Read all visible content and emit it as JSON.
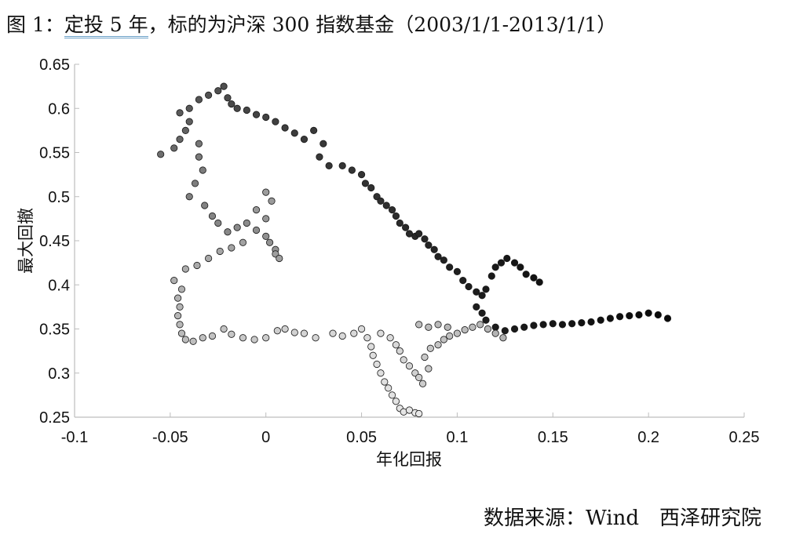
{
  "title": {
    "prefix": "图 1：",
    "highlight": "定投 5 年",
    "rest": "，标的为沪深 300 指数基金（2003/1/1-2013/1/1）"
  },
  "source": "数据来源：Wind　西泽研究院",
  "chart_data": {
    "type": "scatter",
    "xlabel": "年化回报",
    "ylabel": "最大回撤",
    "xlim": [
      -0.1,
      0.25
    ],
    "ylim": [
      0.25,
      0.65
    ],
    "xticks": [
      "-0.1",
      "-0.05",
      "0",
      "0.05",
      "0.1",
      "0.15",
      "0.2",
      "0.25"
    ],
    "yticks": [
      "0.25",
      "0.3",
      "0.35",
      "0.4",
      "0.45",
      "0.5",
      "0.55",
      "0.6",
      "0.65"
    ],
    "grid": false,
    "legend": "none",
    "colormap": "grayscale by start date (light to dark)",
    "points": [
      [
        -0.055,
        0.548,
        "#6e6e6e"
      ],
      [
        -0.048,
        0.555,
        "#6a6a6a"
      ],
      [
        -0.045,
        0.565,
        "#666666"
      ],
      [
        -0.042,
        0.575,
        "#626262"
      ],
      [
        -0.04,
        0.585,
        "#5e5e5e"
      ],
      [
        -0.045,
        0.595,
        "#5a5a5a"
      ],
      [
        -0.04,
        0.6,
        "#585858"
      ],
      [
        -0.035,
        0.61,
        "#555555"
      ],
      [
        -0.03,
        0.615,
        "#525252"
      ],
      [
        -0.025,
        0.62,
        "#505050"
      ],
      [
        -0.022,
        0.625,
        "#4e4e4e"
      ],
      [
        -0.02,
        0.612,
        "#4c4c4c"
      ],
      [
        -0.018,
        0.605,
        "#4a4a4a"
      ],
      [
        -0.015,
        0.6,
        "#484848"
      ],
      [
        -0.01,
        0.598,
        "#464646"
      ],
      [
        -0.005,
        0.593,
        "#444444"
      ],
      [
        0.0,
        0.59,
        "#424242"
      ],
      [
        0.005,
        0.585,
        "#404040"
      ],
      [
        0.01,
        0.578,
        "#3e3e3e"
      ],
      [
        0.015,
        0.572,
        "#3c3c3c"
      ],
      [
        0.02,
        0.565,
        "#3a3a3a"
      ],
      [
        0.025,
        0.575,
        "#393939"
      ],
      [
        0.03,
        0.56,
        "#383838"
      ],
      [
        0.028,
        0.545,
        "#373737"
      ],
      [
        0.033,
        0.535,
        "#363636"
      ],
      [
        0.04,
        0.535,
        "#353535"
      ],
      [
        0.045,
        0.53,
        "#343434"
      ],
      [
        0.05,
        0.525,
        "#333333"
      ],
      [
        0.052,
        0.515,
        "#323232"
      ],
      [
        0.055,
        0.51,
        "#313131"
      ],
      [
        0.058,
        0.5,
        "#303030"
      ],
      [
        0.06,
        0.495,
        "#2f2f2f"
      ],
      [
        0.063,
        0.49,
        "#2e2e2e"
      ],
      [
        0.066,
        0.485,
        "#2d2d2d"
      ],
      [
        0.068,
        0.478,
        "#2c2c2c"
      ],
      [
        0.07,
        0.47,
        "#2b2b2b"
      ],
      [
        0.073,
        0.465,
        "#2a2a2a"
      ],
      [
        0.075,
        0.458,
        "#292929"
      ],
      [
        0.078,
        0.455,
        "#282828"
      ],
      [
        0.08,
        0.458,
        "#272727"
      ],
      [
        0.083,
        0.452,
        "#262626"
      ],
      [
        0.085,
        0.445,
        "#252525"
      ],
      [
        0.088,
        0.44,
        "#242424"
      ],
      [
        0.09,
        0.432,
        "#232323"
      ],
      [
        0.093,
        0.428,
        "#222222"
      ],
      [
        0.096,
        0.42,
        "#212121"
      ],
      [
        0.1,
        0.415,
        "#202020"
      ],
      [
        0.103,
        0.405,
        "#1f1f1f"
      ],
      [
        0.106,
        0.398,
        "#1e1e1e"
      ],
      [
        0.11,
        0.392,
        "#1d1d1d"
      ],
      [
        0.113,
        0.388,
        "#1c1c1c"
      ],
      [
        0.115,
        0.395,
        "#1b1b1b"
      ],
      [
        0.118,
        0.41,
        "#1a1a1a"
      ],
      [
        0.12,
        0.42,
        "#191919"
      ],
      [
        0.123,
        0.425,
        "#181818"
      ],
      [
        0.126,
        0.43,
        "#171717"
      ],
      [
        0.13,
        0.425,
        "#161616"
      ],
      [
        0.133,
        0.42,
        "#151515"
      ],
      [
        0.136,
        0.412,
        "#141414"
      ],
      [
        0.14,
        0.408,
        "#131313"
      ],
      [
        0.143,
        0.403,
        "#121212"
      ],
      [
        0.11,
        0.375,
        "#1f1f1f"
      ],
      [
        0.113,
        0.368,
        "#1e1e1e"
      ],
      [
        0.115,
        0.36,
        "#1d1d1d"
      ],
      [
        0.12,
        0.352,
        "#1c1c1c"
      ],
      [
        0.125,
        0.348,
        "#1b1b1b"
      ],
      [
        0.13,
        0.35,
        "#1a1a1a"
      ],
      [
        0.135,
        0.352,
        "#191919"
      ],
      [
        0.14,
        0.354,
        "#181818"
      ],
      [
        0.145,
        0.355,
        "#171717"
      ],
      [
        0.15,
        0.356,
        "#161616"
      ],
      [
        0.155,
        0.355,
        "#151515"
      ],
      [
        0.16,
        0.356,
        "#141414"
      ],
      [
        0.165,
        0.357,
        "#131313"
      ],
      [
        0.17,
        0.358,
        "#121212"
      ],
      [
        0.175,
        0.36,
        "#111111"
      ],
      [
        0.18,
        0.362,
        "#101010"
      ],
      [
        0.185,
        0.364,
        "#0f0f0f"
      ],
      [
        0.19,
        0.365,
        "#0e0e0e"
      ],
      [
        0.195,
        0.366,
        "#0d0d0d"
      ],
      [
        0.2,
        0.368,
        "#0c0c0c"
      ],
      [
        0.205,
        0.366,
        "#0b0b0b"
      ],
      [
        0.21,
        0.362,
        "#0a0a0a"
      ],
      [
        -0.035,
        0.56,
        "#777777"
      ],
      [
        -0.035,
        0.545,
        "#7a7a7a"
      ],
      [
        -0.033,
        0.53,
        "#7c7c7c"
      ],
      [
        -0.037,
        0.515,
        "#7e7e7e"
      ],
      [
        -0.04,
        0.5,
        "#808080"
      ],
      [
        -0.032,
        0.49,
        "#828282"
      ],
      [
        -0.028,
        0.478,
        "#848484"
      ],
      [
        -0.025,
        0.47,
        "#868686"
      ],
      [
        -0.02,
        0.46,
        "#888888"
      ],
      [
        -0.015,
        0.465,
        "#8a8a8a"
      ],
      [
        -0.01,
        0.47,
        "#8c8c8c"
      ],
      [
        -0.005,
        0.462,
        "#8e8e8e"
      ],
      [
        0.0,
        0.455,
        "#909090"
      ],
      [
        0.002,
        0.448,
        "#929292"
      ],
      [
        0.005,
        0.44,
        "#949494"
      ],
      [
        0.0,
        0.475,
        "#969696"
      ],
      [
        -0.005,
        0.485,
        "#989898"
      ],
      [
        0.003,
        0.495,
        "#9a9a9a"
      ],
      [
        0.0,
        0.505,
        "#9c9c9c"
      ],
      [
        0.005,
        0.435,
        "#9e9e9e"
      ],
      [
        0.007,
        0.43,
        "#a0a0a0"
      ],
      [
        -0.012,
        0.448,
        "#a2a2a2"
      ],
      [
        -0.018,
        0.442,
        "#a4a4a4"
      ],
      [
        -0.024,
        0.438,
        "#a6a6a6"
      ],
      [
        -0.03,
        0.43,
        "#a8a8a8"
      ],
      [
        -0.036,
        0.422,
        "#aaaaaa"
      ],
      [
        -0.042,
        0.418,
        "#acacac"
      ],
      [
        -0.048,
        0.405,
        "#aeaeae"
      ],
      [
        -0.044,
        0.395,
        "#b0b0b0"
      ],
      [
        -0.046,
        0.385,
        "#b2b2b2"
      ],
      [
        -0.045,
        0.375,
        "#b4b4b4"
      ],
      [
        -0.046,
        0.365,
        "#b6b6b6"
      ],
      [
        -0.045,
        0.355,
        "#b8b8b8"
      ],
      [
        -0.044,
        0.345,
        "#bababa"
      ],
      [
        -0.042,
        0.338,
        "#bcbcbc"
      ],
      [
        -0.038,
        0.336,
        "#bebebe"
      ],
      [
        -0.033,
        0.34,
        "#c0c0c0"
      ],
      [
        -0.028,
        0.342,
        "#c2c2c2"
      ],
      [
        -0.022,
        0.35,
        "#c4c4c4"
      ],
      [
        -0.018,
        0.344,
        "#c6c6c6"
      ],
      [
        -0.012,
        0.34,
        "#c8c8c8"
      ],
      [
        -0.006,
        0.338,
        "#cacaca"
      ],
      [
        0.0,
        0.34,
        "#cccccc"
      ],
      [
        0.006,
        0.348,
        "#cecece"
      ],
      [
        0.01,
        0.35,
        "#d0d0d0"
      ],
      [
        0.015,
        0.346,
        "#d2d2d2"
      ],
      [
        0.02,
        0.345,
        "#d4d4d4"
      ],
      [
        0.026,
        0.34,
        "#d5d5d5"
      ],
      [
        0.035,
        0.345,
        "#d7d7d7"
      ],
      [
        0.04,
        0.342,
        "#d8d8d8"
      ],
      [
        0.046,
        0.345,
        "#d9d9d9"
      ],
      [
        0.05,
        0.35,
        "#dadada"
      ],
      [
        0.053,
        0.34,
        "#dbdbdb"
      ],
      [
        0.055,
        0.33,
        "#dcdcdc"
      ],
      [
        0.056,
        0.32,
        "#dddddd"
      ],
      [
        0.058,
        0.31,
        "#dedede"
      ],
      [
        0.06,
        0.3,
        "#dfdfdf"
      ],
      [
        0.062,
        0.29,
        "#e0e0e0"
      ],
      [
        0.064,
        0.283,
        "#e1e1e1"
      ],
      [
        0.066,
        0.275,
        "#e2e2e2"
      ],
      [
        0.068,
        0.268,
        "#e3e3e3"
      ],
      [
        0.07,
        0.26,
        "#e4e4e4"
      ],
      [
        0.072,
        0.256,
        "#e5e5e5"
      ],
      [
        0.075,
        0.258,
        "#e6e6e6"
      ],
      [
        0.078,
        0.255,
        "#e7e7e7"
      ],
      [
        0.08,
        0.254,
        "#e8e8e8"
      ],
      [
        0.06,
        0.345,
        "#dcdcdc"
      ],
      [
        0.065,
        0.34,
        "#dadada"
      ],
      [
        0.068,
        0.332,
        "#d8d8d8"
      ],
      [
        0.07,
        0.325,
        "#d6d6d6"
      ],
      [
        0.072,
        0.315,
        "#d4d4d4"
      ],
      [
        0.075,
        0.308,
        "#d2d2d2"
      ],
      [
        0.078,
        0.3,
        "#d0d0d0"
      ],
      [
        0.08,
        0.295,
        "#cecece"
      ],
      [
        0.082,
        0.288,
        "#cccccc"
      ],
      [
        0.085,
        0.305,
        "#cacaca"
      ],
      [
        0.083,
        0.318,
        "#c8c8c8"
      ],
      [
        0.086,
        0.328,
        "#c6c6c6"
      ],
      [
        0.09,
        0.332,
        "#c4c4c4"
      ],
      [
        0.093,
        0.338,
        "#c2c2c2"
      ],
      [
        0.096,
        0.342,
        "#c0c0c0"
      ],
      [
        0.1,
        0.345,
        "#bebebe"
      ],
      [
        0.104,
        0.349,
        "#bcbcbc"
      ],
      [
        0.108,
        0.352,
        "#bababa"
      ],
      [
        0.112,
        0.355,
        "#b8b8b8"
      ],
      [
        0.116,
        0.35,
        "#b6b6b6"
      ],
      [
        0.12,
        0.345,
        "#b4b4b4"
      ],
      [
        0.124,
        0.34,
        "#b2b2b2"
      ],
      [
        0.08,
        0.355,
        "#bdbdbd"
      ],
      [
        0.085,
        0.352,
        "#bbbbbb"
      ],
      [
        0.09,
        0.355,
        "#b9b9b9"
      ],
      [
        0.095,
        0.352,
        "#b7b7b7"
      ]
    ]
  }
}
